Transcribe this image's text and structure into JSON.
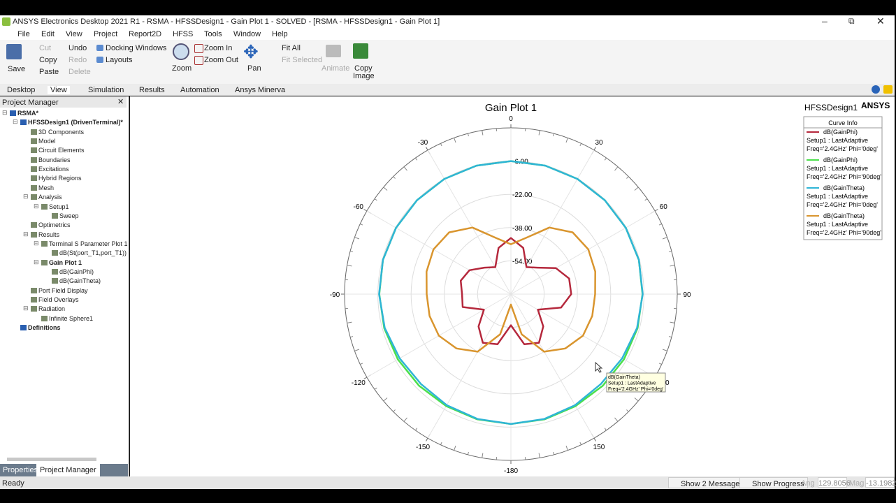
{
  "window_title": "ANSYS Electronics Desktop 2021 R1 - RSMA - HFSSDesign1 - Gain Plot 1 - SOLVED - [RSMA - HFSSDesign1 - Gain Plot 1]",
  "menu": [
    "File",
    "Edit",
    "View",
    "Project",
    "Report2D",
    "HFSS",
    "Tools",
    "Window",
    "Help"
  ],
  "ribbon": {
    "save": "Save",
    "cut": "Cut",
    "copy": "Copy",
    "paste": "Paste",
    "undo": "Undo",
    "redo": "Redo",
    "delete": "Delete",
    "docking": "Docking Windows",
    "layouts": "Layouts",
    "zoom": "Zoom",
    "zoom_in": "Zoom In",
    "zoom_out": "Zoom Out",
    "pan": "Pan",
    "fit_all": "Fit All",
    "fit_selected": "Fit Selected",
    "animate": "Animate",
    "copy_image": [
      "Copy",
      "Image"
    ]
  },
  "tabs": [
    "Desktop",
    "View",
    "Simulation",
    "Results",
    "Automation",
    "Ansys Minerva"
  ],
  "project_manager": {
    "title": "Project Manager",
    "tree": [
      {
        "label": "RSMA*",
        "children": [
          {
            "label": "HFSSDesign1 (DrivenTerminal)*",
            "children": [
              {
                "label": "3D Components"
              },
              {
                "label": "Model"
              },
              {
                "label": "Circuit Elements"
              },
              {
                "label": "Boundaries"
              },
              {
                "label": "Excitations"
              },
              {
                "label": "Hybrid Regions"
              },
              {
                "label": "Mesh"
              },
              {
                "label": "Analysis",
                "children": [
                  {
                    "label": "Setup1",
                    "children": [
                      {
                        "label": "Sweep"
                      }
                    ]
                  }
                ]
              },
              {
                "label": "Optimetrics"
              },
              {
                "label": "Results",
                "children": [
                  {
                    "label": "Terminal S Parameter Plot 1",
                    "children": [
                      {
                        "label": "dB(St(port_T1,port_T1))"
                      }
                    ]
                  },
                  {
                    "label": "Gain Plot 1",
                    "children": [
                      {
                        "label": "dB(GainPhi)"
                      },
                      {
                        "label": "dB(GainTheta)"
                      }
                    ]
                  }
                ]
              },
              {
                "label": "Port Field Display"
              },
              {
                "label": "Field Overlays"
              },
              {
                "label": "Radiation",
                "children": [
                  {
                    "label": "Infinite Sphere1"
                  }
                ]
              }
            ]
          },
          {
            "label": "Definitions"
          }
        ]
      }
    ],
    "bottom_tabs": [
      "Properties",
      "Project Manager"
    ]
  },
  "plot": {
    "design": "HFSSDesign1",
    "brand": "ANSYS",
    "legend_title": "Curve Info",
    "tooltip": [
      "dB(GainTheta)",
      "Setup1 : LastAdaptive",
      "Freq='2.4GHz' Phi='0deg'"
    ]
  },
  "status": {
    "ready": "Ready",
    "messages": "Show 2 Messages",
    "progress": "Show Progress",
    "ang_label": "Ang",
    "ang_value": "129.8056",
    "mag_label": "Mag",
    "mag_value": "-13.1982"
  },
  "chart_data": {
    "type": "polar",
    "title": "Gain Plot 1",
    "x": [
      -180,
      -165,
      -150,
      -135,
      -120,
      -105,
      -90,
      -75,
      -60,
      -45,
      -30,
      -15,
      0,
      15,
      30,
      45,
      60,
      75,
      90,
      105,
      120,
      135,
      150,
      165
    ],
    "rlim": [
      -70,
      10
    ],
    "rticks": [
      {
        "value": -6,
        "label": "-6.00"
      },
      {
        "value": -22,
        "label": "-22.00"
      },
      {
        "value": -38,
        "label": "-38.00"
      },
      {
        "value": -54,
        "label": "-54.00"
      }
    ],
    "xticks": [
      0,
      30,
      60,
      90,
      120,
      150,
      -180,
      -150,
      -120,
      -90,
      -60,
      -30
    ],
    "grid": true,
    "series": [
      {
        "name": "dB(GainPhi)",
        "setup": "Setup1 : LastAdaptive",
        "variation": "Freq='2.4GHz' Phi='0deg'",
        "color": "#b5283c",
        "values": [
          -55,
          -45,
          -43,
          -48,
          -55,
          -46,
          -46.5,
          -45,
          -47,
          -52,
          -55,
          -47,
          -43,
          -47,
          -55,
          -52,
          -45,
          -41,
          -41,
          -45,
          -55,
          -48,
          -43,
          -45
        ]
      },
      {
        "name": "dB(GainPhi)",
        "setup": "Setup1 : LastAdaptive",
        "variation": "Freq='2.4GHz' Phi='90deg'",
        "color": "#4be04b",
        "values": [
          -7.5,
          -7.6,
          -7.8,
          -7.6,
          -7.2,
          -6.9,
          -6.7,
          -6.3,
          -6.2,
          -6.1,
          -6,
          -6,
          -6,
          -6,
          -6,
          -6.1,
          -6.2,
          -6.3,
          -6.7,
          -6.9,
          -7.2,
          -7.6,
          -7.8,
          -7.6
        ]
      },
      {
        "name": "dB(GainTheta)",
        "setup": "Setup1 : LastAdaptive",
        "variation": "Freq='2.4GHz' Phi='0deg'",
        "color": "#2fb5d6",
        "values": [
          -7.5,
          -7.8,
          -8.3,
          -8.8,
          -8.2,
          -7.2,
          -6.6,
          -6.3,
          -6.2,
          -6.1,
          -6,
          -6,
          -6,
          -6,
          -6,
          -6.1,
          -6.2,
          -6.3,
          -6.6,
          -7.2,
          -8.2,
          -8.8,
          -8.3,
          -7.8
        ]
      },
      {
        "name": "dB(GainTheta)",
        "setup": "Setup1 : LastAdaptive",
        "variation": "Freq='2.4GHz' Phi='90deg'",
        "color": "#d9952e",
        "values": [
          -65,
          -50,
          -38,
          -33,
          -30,
          -29.5,
          -29.5,
          -28,
          -27,
          -28,
          -33,
          -42,
          -46,
          -42,
          -33,
          -28,
          -27,
          -28,
          -29.5,
          -29.5,
          -30,
          -33,
          -38,
          -50
        ]
      }
    ]
  }
}
